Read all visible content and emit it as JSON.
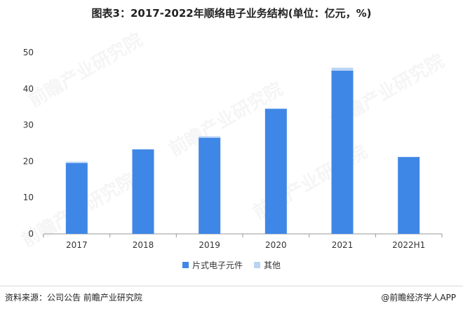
{
  "title": "图表3：2017-2022年顺络电子业务结构(单位：亿元，%)",
  "legend": {
    "series1": "片式电子元件",
    "series2": "其他"
  },
  "footer": {
    "source": "资料来源：公司公告 前瞻产业研究院",
    "brand": "@前瞻经济学人APP"
  },
  "watermark": "前瞻产业研究院",
  "colors": {
    "series1": "#3f87e6",
    "series2": "#b9d3f5",
    "axis": "#999999"
  },
  "chart_data": {
    "type": "bar",
    "stacked": true,
    "categories": [
      "2017",
      "2018",
      "2019",
      "2020",
      "2021",
      "2022H1"
    ],
    "series": [
      {
        "name": "片式电子元件",
        "values": [
          19.5,
          23.3,
          26.5,
          34.5,
          45.0,
          21.2
        ]
      },
      {
        "name": "其他",
        "values": [
          0.4,
          0.0,
          0.4,
          0.0,
          0.8,
          0.0
        ]
      }
    ],
    "ylim": [
      0,
      50
    ],
    "yticks": [
      0,
      10,
      20,
      30,
      40,
      50
    ],
    "grid": false,
    "legend_position": "bottom"
  }
}
